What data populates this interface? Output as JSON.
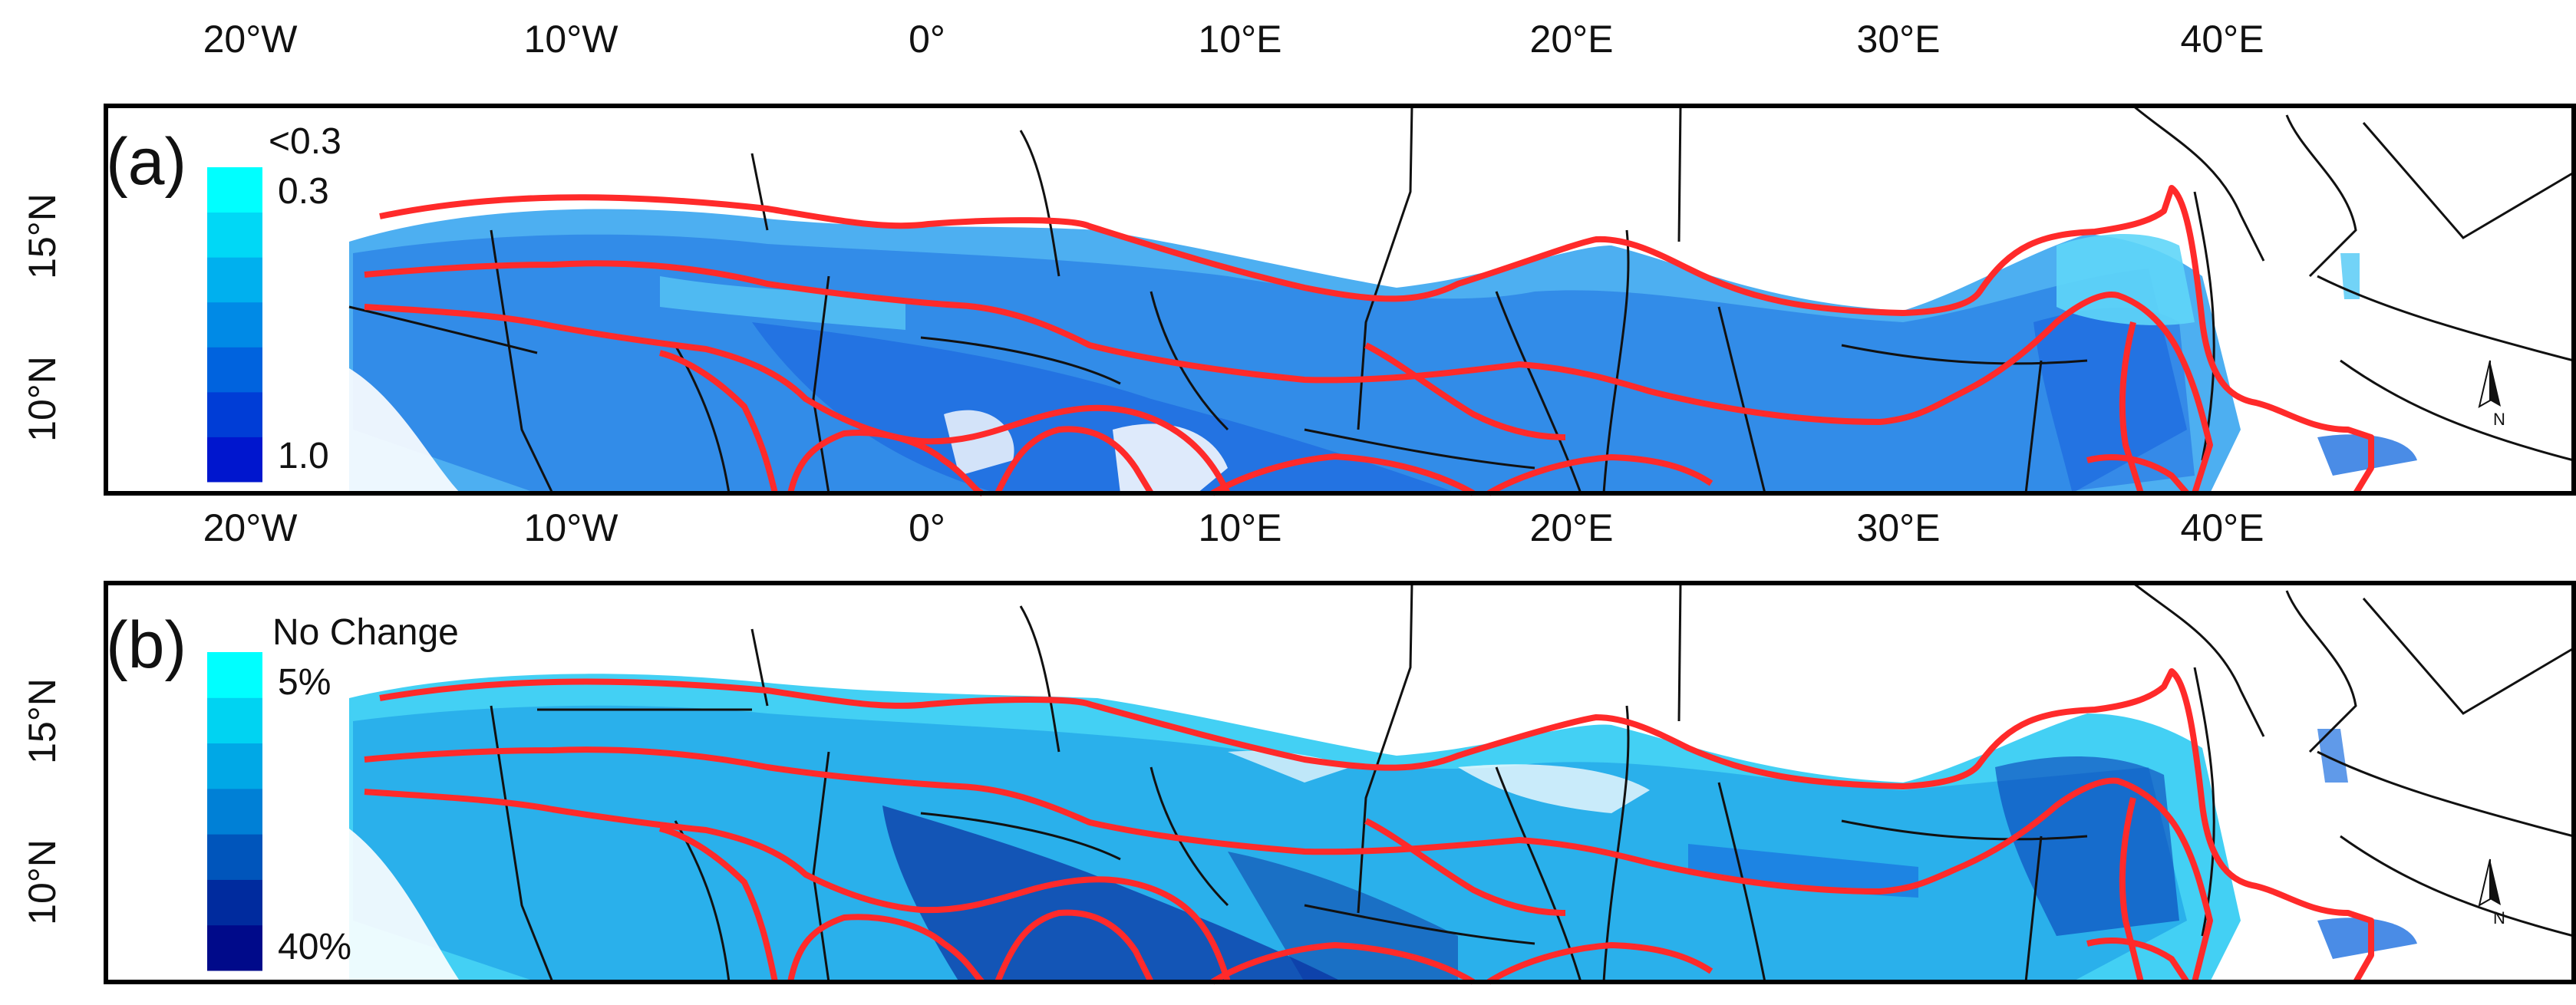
{
  "panels": [
    {
      "id": "a",
      "label": "(a)",
      "legend": {
        "labels": [
          "<0.3",
          "0.3",
          "1.0"
        ],
        "colors": [
          "#00ffff",
          "#00d8f6",
          "#00b0ee",
          "#008ae6",
          "#0063de",
          "#003dd6",
          "#0016ce"
        ]
      }
    },
    {
      "id": "b",
      "label": "(b)",
      "legend": {
        "labels": [
          "No Change",
          "5%",
          "40%"
        ],
        "colors": [
          "#00ffff",
          "#00d3f2",
          "#00a8e6",
          "#0080d6",
          "#0055bb",
          "#002b9e",
          "#000a8a"
        ]
      }
    }
  ],
  "lon_ticks": [
    "20°W",
    "10°W",
    "0°",
    "10°E",
    "20°E",
    "30°E",
    "40°E"
  ],
  "lat_ticks": [
    "15°N",
    "10°N"
  ],
  "north_arrow_label": "N",
  "colors": {
    "zone_boundary": "#ff2a2a",
    "country_border": "#111111",
    "panel_frame": "#000000"
  }
}
